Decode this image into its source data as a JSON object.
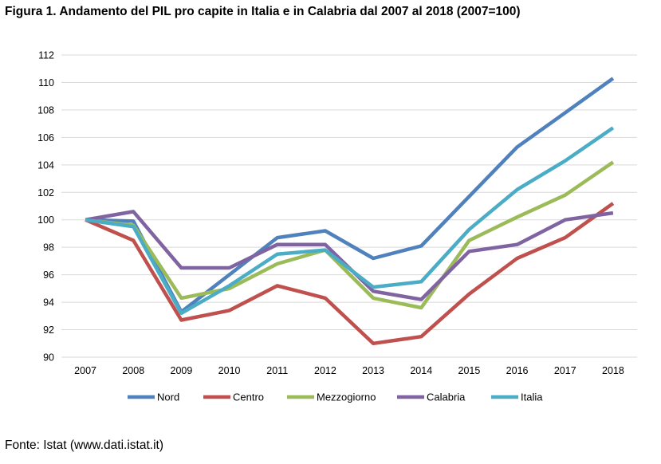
{
  "title": "Figura 1.  Andamento del PIL pro capite in Italia e in Calabria dal 2007 al 2018 (2007=100)",
  "source": "Fonte: Istat (www.dati.istat.it)",
  "chart_data": {
    "type": "line",
    "title": "Figura 1.  Andamento del PIL pro capite in Italia e in Calabria dal 2007 al 2018 (2007=100)",
    "xlabel": "",
    "ylabel": "",
    "x": [
      "2007",
      "2008",
      "2009",
      "2010",
      "2011",
      "2012",
      "2013",
      "2014",
      "2015",
      "2016",
      "2017",
      "2018"
    ],
    "ylim": [
      90,
      112
    ],
    "yticks": [
      90,
      92,
      94,
      96,
      98,
      100,
      102,
      104,
      106,
      108,
      110,
      112
    ],
    "grid": "horizontal",
    "legend_position": "bottom",
    "series": [
      {
        "name": "Nord",
        "color": "#4F81BD",
        "values": [
          100,
          99.9,
          93.3,
          96.0,
          98.7,
          99.2,
          97.2,
          98.1,
          101.7,
          105.3,
          107.8,
          110.3
        ]
      },
      {
        "name": "Centro",
        "color": "#C0504D",
        "values": [
          100,
          98.5,
          92.7,
          93.4,
          95.2,
          94.3,
          91.0,
          91.5,
          94.6,
          97.2,
          98.7,
          101.2
        ]
      },
      {
        "name": "Mezzogiorno",
        "color": "#9BBB59",
        "values": [
          100,
          99.6,
          94.3,
          95.0,
          96.8,
          97.8,
          94.3,
          93.6,
          98.5,
          100.2,
          101.8,
          104.2
        ]
      },
      {
        "name": "Calabria",
        "color": "#8064A2",
        "values": [
          100,
          100.6,
          96.5,
          96.5,
          98.2,
          98.2,
          94.8,
          94.2,
          97.7,
          98.2,
          100.0,
          100.5
        ]
      },
      {
        "name": "Italia",
        "color": "#4BACC6",
        "values": [
          100,
          99.5,
          93.2,
          95.2,
          97.5,
          97.8,
          95.1,
          95.5,
          99.3,
          102.2,
          104.3,
          106.7
        ]
      }
    ]
  }
}
